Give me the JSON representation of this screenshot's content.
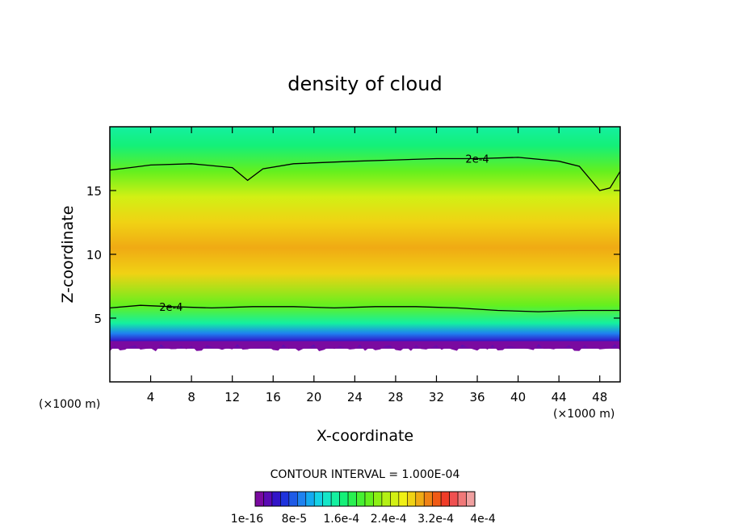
{
  "chart_data": {
    "type": "heatmap",
    "title": "density of cloud",
    "xlabel": "X-coordinate",
    "ylabel": "Z-coordinate",
    "x_unit_label": "(×1000 m)",
    "z_unit_label": "(×1000 m)",
    "xlim": [
      0,
      50
    ],
    "ylim": [
      0,
      20
    ],
    "x_ticks": [
      4,
      8,
      12,
      16,
      20,
      24,
      28,
      32,
      36,
      40,
      44,
      48
    ],
    "y_ticks": [
      5,
      10,
      15
    ],
    "grid": false,
    "contour_interval_label": "CONTOUR INTERVAL = 1.000E-04",
    "colorbar_labels": [
      "1e-16",
      "8e-5",
      "1.6e-4",
      "2.4e-4",
      "3.2e-4",
      "4e-4"
    ],
    "colorbar_range": [
      1e-16,
      0.0004
    ],
    "colorbar_colors": [
      "#7a0aa0",
      "#5a0ab4",
      "#3214c8",
      "#1e32dc",
      "#1e5ae6",
      "#1e82f0",
      "#14aaf0",
      "#14d2e6",
      "#14e6c8",
      "#14f0a0",
      "#14f078",
      "#28f050",
      "#46f032",
      "#64f01e",
      "#8cf014",
      "#b4f014",
      "#d2f014",
      "#f0f014",
      "#f0d214",
      "#f0aa14",
      "#f08214",
      "#f05a14",
      "#f03c28",
      "#f05050",
      "#f07878",
      "#f0a0a0"
    ],
    "contour_lines": [
      {
        "label": "2e-4",
        "x": [
          0,
          2,
          4,
          8,
          12,
          13.5,
          15,
          18,
          24,
          28,
          32,
          36,
          40,
          44,
          46,
          48,
          49,
          50
        ],
        "y": [
          16.6,
          16.8,
          17.0,
          17.1,
          16.8,
          15.8,
          16.7,
          17.1,
          17.3,
          17.4,
          17.5,
          17.5,
          17.6,
          17.3,
          16.9,
          15.0,
          15.2,
          16.5
        ]
      },
      {
        "label": "2e-4",
        "x": [
          0,
          3,
          6,
          10,
          14,
          18,
          22,
          26,
          30,
          34,
          38,
          42,
          46,
          50
        ],
        "y": [
          5.8,
          6.0,
          5.9,
          5.8,
          5.9,
          5.9,
          5.8,
          5.9,
          5.9,
          5.8,
          5.6,
          5.5,
          5.6,
          5.6
        ]
      }
    ],
    "field_profile_by_z": [
      {
        "z": 0,
        "value": null
      },
      {
        "z": 2.2,
        "value": null
      },
      {
        "z": 2.6,
        "value": 1e-16
      },
      {
        "z": 3.2,
        "value": 4e-05
      },
      {
        "z": 3.8,
        "value": 9e-05
      },
      {
        "z": 4.6,
        "value": 0.00014
      },
      {
        "z": 6.0,
        "value": 0.00021
      },
      {
        "z": 8.5,
        "value": 0.00028
      },
      {
        "z": 10.5,
        "value": 0.0003
      },
      {
        "z": 12.5,
        "value": 0.00029
      },
      {
        "z": 14.5,
        "value": 0.00025
      },
      {
        "z": 16.5,
        "value": 0.00021
      },
      {
        "z": 18.5,
        "value": 0.00016
      },
      {
        "z": 20,
        "value": 0.00015
      }
    ]
  }
}
